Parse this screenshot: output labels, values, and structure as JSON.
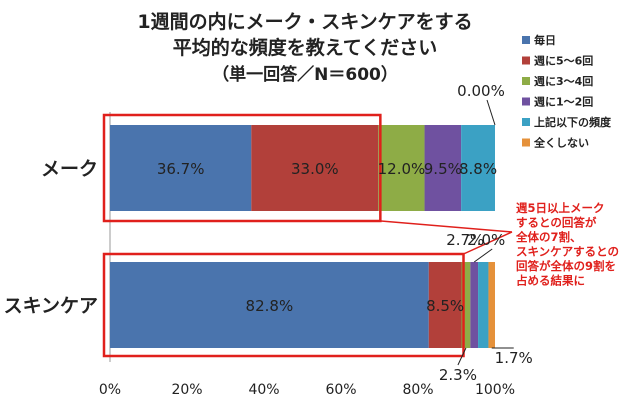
{
  "chart_data": {
    "type": "bar",
    "orientation": "horizontal",
    "stacked": true,
    "title": "1週間の内にメーク・スキンケアをする",
    "subtitle": "平均的な頻度を教えてください",
    "note": "（単一回答／N＝600）",
    "categories": [
      "メーク",
      "スキンケア"
    ],
    "series": [
      {
        "name": "毎日",
        "color": "#4a74ad",
        "values": [
          36.7,
          82.8
        ]
      },
      {
        "name": "週に5～6回",
        "color": "#b2403a",
        "values": [
          33.0,
          8.5
        ]
      },
      {
        "name": "週に3～4回",
        "color": "#8eac46",
        "values": [
          12.0,
          2.3
        ]
      },
      {
        "name": "週に1～2回",
        "color": "#6f51a0",
        "values": [
          9.5,
          2.0
        ]
      },
      {
        "name": "上記以下の頻度",
        "color": "#3ba1c4",
        "values": [
          8.8,
          2.7
        ]
      },
      {
        "name": "全くしない",
        "color": "#e5913a",
        "values": [
          0.0,
          1.7
        ]
      }
    ],
    "data_labels": [
      {
        "category": 0,
        "series": 0,
        "text": "36.7%"
      },
      {
        "category": 0,
        "series": 1,
        "text": "33.0%"
      },
      {
        "category": 0,
        "series": 2,
        "text": "12.0%"
      },
      {
        "category": 0,
        "series": 3,
        "text": "9.5%"
      },
      {
        "category": 0,
        "series": 4,
        "text": "8.8%"
      },
      {
        "category": 0,
        "series": 5,
        "text": "0.00%"
      },
      {
        "category": 1,
        "series": 0,
        "text": "82.8%"
      },
      {
        "category": 1,
        "series": 1,
        "text": "8.5%"
      },
      {
        "category": 1,
        "series": 2,
        "text": "2.3%"
      },
      {
        "category": 1,
        "series": 3,
        "text": "2.0%"
      },
      {
        "category": 1,
        "series": 4,
        "text": "2.7%"
      },
      {
        "category": 1,
        "series": 5,
        "text": "1.7%"
      }
    ],
    "xlim": [
      0,
      100
    ],
    "xticks": [
      "0%",
      "20%",
      "40%",
      "60%",
      "80%",
      "100%"
    ],
    "grid": false,
    "legend_position": "right",
    "annotation": [
      "週5日以上メーク",
      "するとの回答が",
      "全体の7割、",
      "スキンケアするとの",
      "回答が全体の9割を",
      "占める結果に"
    ],
    "highlight_color": "#e0201c"
  }
}
